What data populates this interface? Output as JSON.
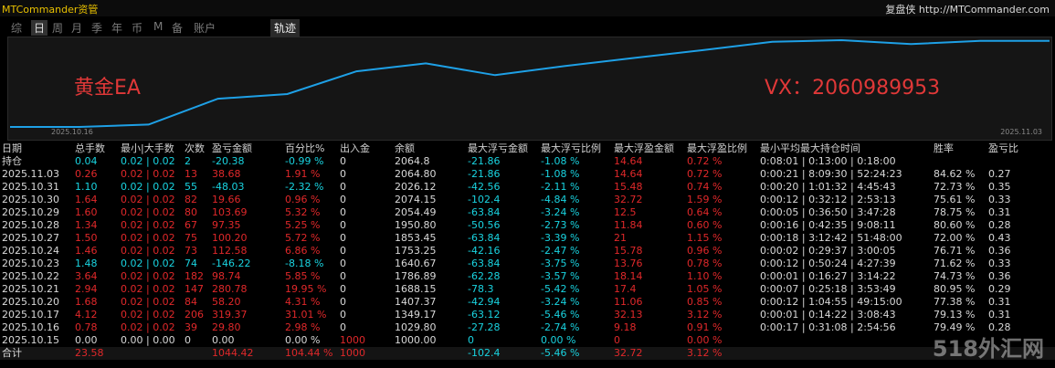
{
  "header": {
    "title": "MTCommander资管",
    "right": "复盘侠 http://MTCommander.com"
  },
  "tabs": [
    "综",
    "日",
    "周",
    "月",
    "季",
    "年",
    "币",
    "M",
    "备",
    "账户"
  ],
  "active_tab": 1,
  "track_tab": "轨迹",
  "curve": {
    "start_label": "2025.10.16",
    "end_label": "2025.11.03",
    "left_note": "黄金EA",
    "right_note": "VX：2060989953",
    "color": "#1ea0e6",
    "values": [
      1000,
      1000,
      1029.8,
      1349.17,
      1407.37,
      1688.15,
      1786.89,
      1640.67,
      1753.25,
      1853.45,
      1950.8,
      2054.49,
      2074.15,
      2026.12,
      2064.8,
      2064.8
    ]
  },
  "table": {
    "columns": [
      "日期",
      "总手数",
      "最小|大手数",
      "次数",
      "盈亏金额",
      "百分比%",
      "出入金",
      "余额",
      "最大浮亏金额",
      "最大浮亏比例",
      "最大浮盈金额",
      "最大浮盈比例",
      "最小平均最大持仓时间",
      "胜率",
      "盈亏比"
    ],
    "rows": [
      {
        "color": "#19d3e0",
        "cells": [
          "持仓",
          "0.04",
          "0.02 | 0.02",
          "2",
          "-20.38",
          "-0.99 %",
          "0",
          "2064.8",
          "-21.86",
          "-1.08 %",
          "14.64",
          "0.72 %",
          "0:08:01 | 0:13:00 | 0:18:00",
          null,
          null
        ]
      },
      {
        "color": "#e0282a",
        "cells": [
          "2025.11.03",
          "0.26",
          "0.02 | 0.02",
          "13",
          "38.68",
          "1.91 %",
          "0",
          "2064.80",
          "-21.86",
          "-1.08 %",
          "14.64",
          "0.72 %",
          "0:00:21 | 8:09:30 | 52:24:23",
          "84.62 %",
          "0.27"
        ]
      },
      {
        "color": "#19d3e0",
        "cells": [
          "2025.10.31",
          "1.10",
          "0.02 | 0.02",
          "55",
          "-48.03",
          "-2.32 %",
          "0",
          "2026.12",
          "-42.56",
          "-2.11 %",
          "15.48",
          "0.74 %",
          "0:00:20 | 1:01:32 | 4:45:43",
          "72.73 %",
          "0.35"
        ]
      },
      {
        "color": "#e0282a",
        "cells": [
          "2025.10.30",
          "1.64",
          "0.02 | 0.02",
          "82",
          "19.66",
          "0.96 %",
          "0",
          "2074.15",
          "-102.4",
          "-4.84 %",
          "32.72",
          "1.59 %",
          "0:00:12 | 0:32:12 | 2:53:13",
          "75.61 %",
          "0.33"
        ]
      },
      {
        "color": "#e0282a",
        "cells": [
          "2025.10.29",
          "1.60",
          "0.02 | 0.02",
          "80",
          "103.69",
          "5.32 %",
          "0",
          "2054.49",
          "-63.84",
          "-3.24 %",
          "12.5",
          "0.64 %",
          "0:00:05 | 0:36:50 | 3:47:28",
          "78.75 %",
          "0.31"
        ]
      },
      {
        "color": "#e0282a",
        "cells": [
          "2025.10.28",
          "1.34",
          "0.02 | 0.02",
          "67",
          "97.35",
          "5.25 %",
          "0",
          "1950.80",
          "-50.56",
          "-2.73 %",
          "11.84",
          "0.60 %",
          "0:00:16 | 0:42:35 | 9:08:11",
          "80.60 %",
          "0.28"
        ]
      },
      {
        "color": "#e0282a",
        "cells": [
          "2025.10.27",
          "1.50",
          "0.02 | 0.02",
          "75",
          "100.20",
          "5.72 %",
          "0",
          "1853.45",
          "-63.84",
          "-3.39 %",
          "21",
          "1.15 %",
          "0:00:18 | 3:12:42 | 51:48:00",
          "72.00 %",
          "0.43"
        ]
      },
      {
        "color": "#e0282a",
        "cells": [
          "2025.10.24",
          "1.46",
          "0.02 | 0.02",
          "73",
          "112.58",
          "6.86 %",
          "0",
          "1753.25",
          "-42.16",
          "-2.47 %",
          "15.78",
          "0.96 %",
          "0:00:02 | 0:29:37 | 3:00:05",
          "76.71 %",
          "0.36"
        ]
      },
      {
        "color": "#19d3e0",
        "cells": [
          "2025.10.23",
          "1.48",
          "0.02 | 0.02",
          "74",
          "-146.22",
          "-8.18 %",
          "0",
          "1640.67",
          "-63.84",
          "-3.75 %",
          "13.76",
          "0.78 %",
          "0:00:12 | 0:50:24 | 4:27:39",
          "71.62 %",
          "0.33"
        ]
      },
      {
        "color": "#e0282a",
        "cells": [
          "2025.10.22",
          "3.64",
          "0.02 | 0.02",
          "182",
          "98.74",
          "5.85 %",
          "0",
          "1786.89",
          "-62.28",
          "-3.57 %",
          "18.14",
          "1.10 %",
          "0:00:01 | 0:16:27 | 3:14:22",
          "74.73 %",
          "0.36"
        ]
      },
      {
        "color": "#e0282a",
        "cells": [
          "2025.10.21",
          "2.94",
          "0.02 | 0.02",
          "147",
          "280.78",
          "19.95 %",
          "0",
          "1688.15",
          "-78.3",
          "-5.42 %",
          "17.4",
          "1.05 %",
          "0:00:07 | 0:25:18 | 3:53:49",
          "80.95 %",
          "0.29"
        ]
      },
      {
        "color": "#e0282a",
        "cells": [
          "2025.10.20",
          "1.68",
          "0.02 | 0.02",
          "84",
          "58.20",
          "4.31 %",
          "0",
          "1407.37",
          "-42.94",
          "-3.24 %",
          "11.06",
          "0.85 %",
          "0:00:12 | 1:04:55 | 49:15:00",
          "77.38 %",
          "0.31"
        ]
      },
      {
        "color": "#e0282a",
        "cells": [
          "2025.10.17",
          "4.12",
          "0.02 | 0.02",
          "206",
          "319.37",
          "31.01 %",
          "0",
          "1349.17",
          "-63.12",
          "-5.46 %",
          "32.13",
          "3.12 %",
          "0:00:01 | 0:14:22 | 3:08:43",
          "79.13 %",
          "0.31"
        ]
      },
      {
        "color": "#e0282a",
        "cells": [
          "2025.10.16",
          "0.78",
          "0.02 | 0.02",
          "39",
          "29.80",
          "2.98 %",
          "0",
          "1029.80",
          "-27.28",
          "-2.74 %",
          "9.18",
          "0.91 %",
          "0:00:17 | 0:31:08 | 2:54:56",
          "79.49 %",
          "0.28"
        ]
      },
      {
        "color": "#d8d8d8",
        "flow_color": "#e0282a",
        "cells": [
          "2025.10.15",
          "0.00",
          "0.00 | 0.00",
          "0",
          "0.00",
          "0.00 %",
          "1000",
          "1000.00",
          "0",
          "0.00 %",
          "0",
          "0.00 %",
          null,
          null,
          null
        ]
      },
      {
        "color": "#e0282a",
        "flow_color": "#e0282a",
        "cells": [
          "合计",
          "23.58",
          null,
          null,
          "1044.42",
          "104.44 %",
          "1000",
          null,
          "-102.4",
          "-5.46 %",
          "32.72",
          "3.12 %",
          null,
          null,
          null
        ]
      }
    ]
  },
  "watermark": "518外汇网"
}
